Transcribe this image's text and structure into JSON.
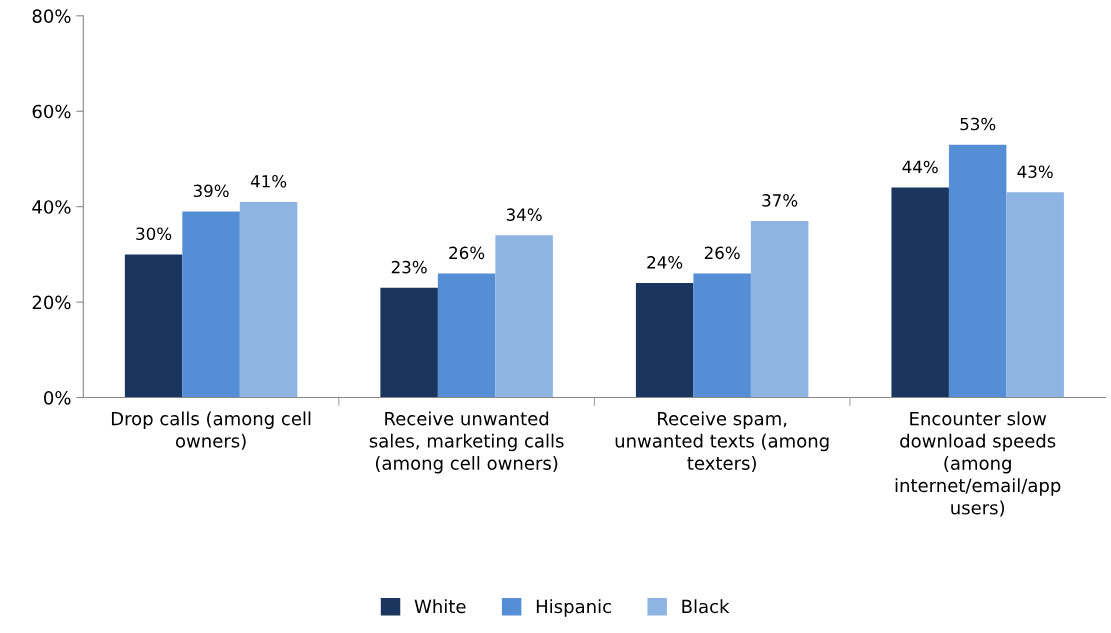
{
  "chart_data": {
    "type": "bar",
    "categories": [
      "Drop calls (among cell\nowners)",
      "Receive unwanted\nsales, marketing calls\n(among cell owners)",
      "Receive spam,\nunwanted texts (among\ntexters)",
      "Encounter slow\ndownload speeds\n(among\ninternet/email/app\nusers)"
    ],
    "series": [
      {
        "name": "White",
        "color": "#1b365e",
        "values": [
          30,
          23,
          24,
          44
        ],
        "value_labels": [
          "30%",
          "23%",
          "24%",
          "44%"
        ]
      },
      {
        "name": "Hispanic",
        "color": "#558ed5",
        "values": [
          39,
          26,
          26,
          53
        ],
        "value_labels": [
          "39%",
          "26%",
          "26%",
          "53%"
        ]
      },
      {
        "name": "Black",
        "color": "#8eb4e3",
        "values": [
          41,
          34,
          37,
          43
        ],
        "value_labels": [
          "41%",
          "34%",
          "37%",
          "43%"
        ]
      }
    ],
    "ylim": [
      0,
      80
    ],
    "yticks": [
      {
        "value": 0,
        "label": "0%"
      },
      {
        "value": 20,
        "label": "20%"
      },
      {
        "value": 40,
        "label": "40%"
      },
      {
        "value": 60,
        "label": "60%"
      },
      {
        "value": 80,
        "label": "80%"
      }
    ],
    "grid": false,
    "legend": "bottom"
  }
}
